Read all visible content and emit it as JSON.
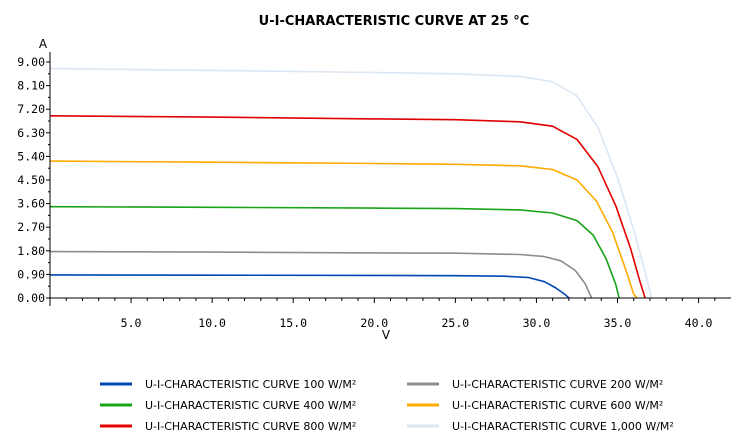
{
  "chart_data": {
    "type": "line",
    "title": "U-I-CHARACTERISTIC CURVE AT 25 °C",
    "xlabel": "V",
    "ylabel": "A",
    "xlim": [
      0,
      42
    ],
    "ylim": [
      0,
      9.0
    ],
    "x_ticks": [
      5.0,
      10.0,
      15.0,
      20.0,
      25.0,
      30.0,
      35.0,
      40.0
    ],
    "x_tick_labels": [
      "5.0",
      "10.0",
      "15.0",
      "20.0",
      "25.0",
      "30.0",
      "35.0",
      "40.0"
    ],
    "y_ticks": [
      0,
      0.9,
      1.8,
      2.7,
      3.6,
      4.5,
      5.4,
      6.3,
      7.2,
      8.1,
      9.0
    ],
    "y_tick_labels": [
      "0.00",
      "0.90",
      "1.80",
      "2.70",
      "3.60",
      "4.50",
      "5.40",
      "6.30",
      "7.20",
      "8.10",
      "9.00"
    ],
    "grid": false,
    "legend_position": "bottom",
    "series": [
      {
        "name": "U-I-CHARACTERISTIC CURVE 100 W/M²",
        "color": "#0047b3",
        "points": [
          [
            0,
            0.88
          ],
          [
            10,
            0.87
          ],
          [
            20,
            0.86
          ],
          [
            25,
            0.85
          ],
          [
            28,
            0.83
          ],
          [
            29.5,
            0.78
          ],
          [
            30.5,
            0.62
          ],
          [
            31.2,
            0.38
          ],
          [
            31.8,
            0.12
          ],
          [
            32.0,
            0
          ]
        ]
      },
      {
        "name": "U-I-CHARACTERISTIC CURVE 200 W/M²",
        "color": "#8c8c8c",
        "points": [
          [
            0,
            1.77
          ],
          [
            10,
            1.75
          ],
          [
            20,
            1.72
          ],
          [
            25,
            1.71
          ],
          [
            29,
            1.66
          ],
          [
            30.5,
            1.58
          ],
          [
            31.5,
            1.42
          ],
          [
            32.4,
            1.05
          ],
          [
            33.0,
            0.55
          ],
          [
            33.4,
            0
          ]
        ]
      },
      {
        "name": "U-I-CHARACTERISTIC CURVE 400 W/M²",
        "color": "#18a418",
        "points": [
          [
            0,
            3.48
          ],
          [
            10,
            3.46
          ],
          [
            20,
            3.43
          ],
          [
            25,
            3.41
          ],
          [
            29,
            3.36
          ],
          [
            31,
            3.24
          ],
          [
            32.5,
            2.95
          ],
          [
            33.5,
            2.4
          ],
          [
            34.3,
            1.5
          ],
          [
            34.9,
            0.5
          ],
          [
            35.1,
            0
          ]
        ]
      },
      {
        "name": "U-I-CHARACTERISTIC CURVE 600 W/M²",
        "color": "#ffaa00",
        "points": [
          [
            0,
            5.22
          ],
          [
            10,
            5.18
          ],
          [
            20,
            5.13
          ],
          [
            25,
            5.1
          ],
          [
            29,
            5.04
          ],
          [
            31,
            4.9
          ],
          [
            32.5,
            4.5
          ],
          [
            33.7,
            3.7
          ],
          [
            34.7,
            2.5
          ],
          [
            35.5,
            1.1
          ],
          [
            36.0,
            0.15
          ],
          [
            36.2,
            0
          ]
        ]
      },
      {
        "name": "U-I-CHARACTERISTIC CURVE 800 W/M²",
        "color": "#e00000",
        "points": [
          [
            0,
            6.95
          ],
          [
            10,
            6.9
          ],
          [
            20,
            6.83
          ],
          [
            25,
            6.8
          ],
          [
            29,
            6.72
          ],
          [
            31,
            6.55
          ],
          [
            32.5,
            6.05
          ],
          [
            33.8,
            5.0
          ],
          [
            34.9,
            3.5
          ],
          [
            35.8,
            1.9
          ],
          [
            36.4,
            0.6
          ],
          [
            36.7,
            0
          ]
        ]
      },
      {
        "name": "U-I-CHARACTERISTIC CURVE 1,000 W/M²",
        "color": "#dbe7f3",
        "points": [
          [
            0,
            8.75
          ],
          [
            10,
            8.68
          ],
          [
            20,
            8.6
          ],
          [
            25,
            8.55
          ],
          [
            29,
            8.45
          ],
          [
            31,
            8.25
          ],
          [
            32.5,
            7.7
          ],
          [
            33.8,
            6.5
          ],
          [
            35.0,
            4.6
          ],
          [
            36.0,
            2.6
          ],
          [
            36.7,
            1.0
          ],
          [
            37.1,
            0
          ]
        ]
      }
    ]
  }
}
